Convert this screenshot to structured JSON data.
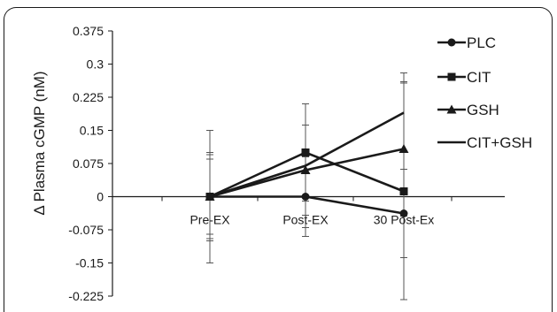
{
  "chart_data": {
    "type": "line",
    "title": "",
    "xlabel": "",
    "ylabel": "Δ Plasma cGMP (nM)",
    "categories": [
      "Pre-EX",
      "Post-EX",
      "30 Post-Ex"
    ],
    "ylim": [
      -0.225,
      0.375
    ],
    "yticks": [
      "0.375",
      "0.3",
      "0.225",
      "0.15",
      "0.075",
      "0",
      "-0.075",
      "-0.15",
      "-0.225"
    ],
    "legend_position": "top-right",
    "series": [
      {
        "name": "PLC",
        "marker": "circle",
        "values": [
          0,
          0,
          -0.038
        ],
        "err": [
          0.15,
          0.09,
          0.1
        ]
      },
      {
        "name": "CIT",
        "marker": "square",
        "values": [
          0,
          0.1,
          0.012
        ],
        "err": [
          0.095,
          0.11,
          0.245
        ]
      },
      {
        "name": "GSH",
        "marker": "triangle",
        "values": [
          0,
          0.06,
          0.108
        ],
        "err": [
          0.085,
          0.102,
          0.152
        ]
      },
      {
        "name": "CIT+GSH",
        "marker": "none",
        "values": [
          0,
          0.07,
          0.19
        ],
        "err": [
          0.1,
          0.14,
          0.09
        ]
      }
    ],
    "line_color": "#1a1a1a"
  }
}
